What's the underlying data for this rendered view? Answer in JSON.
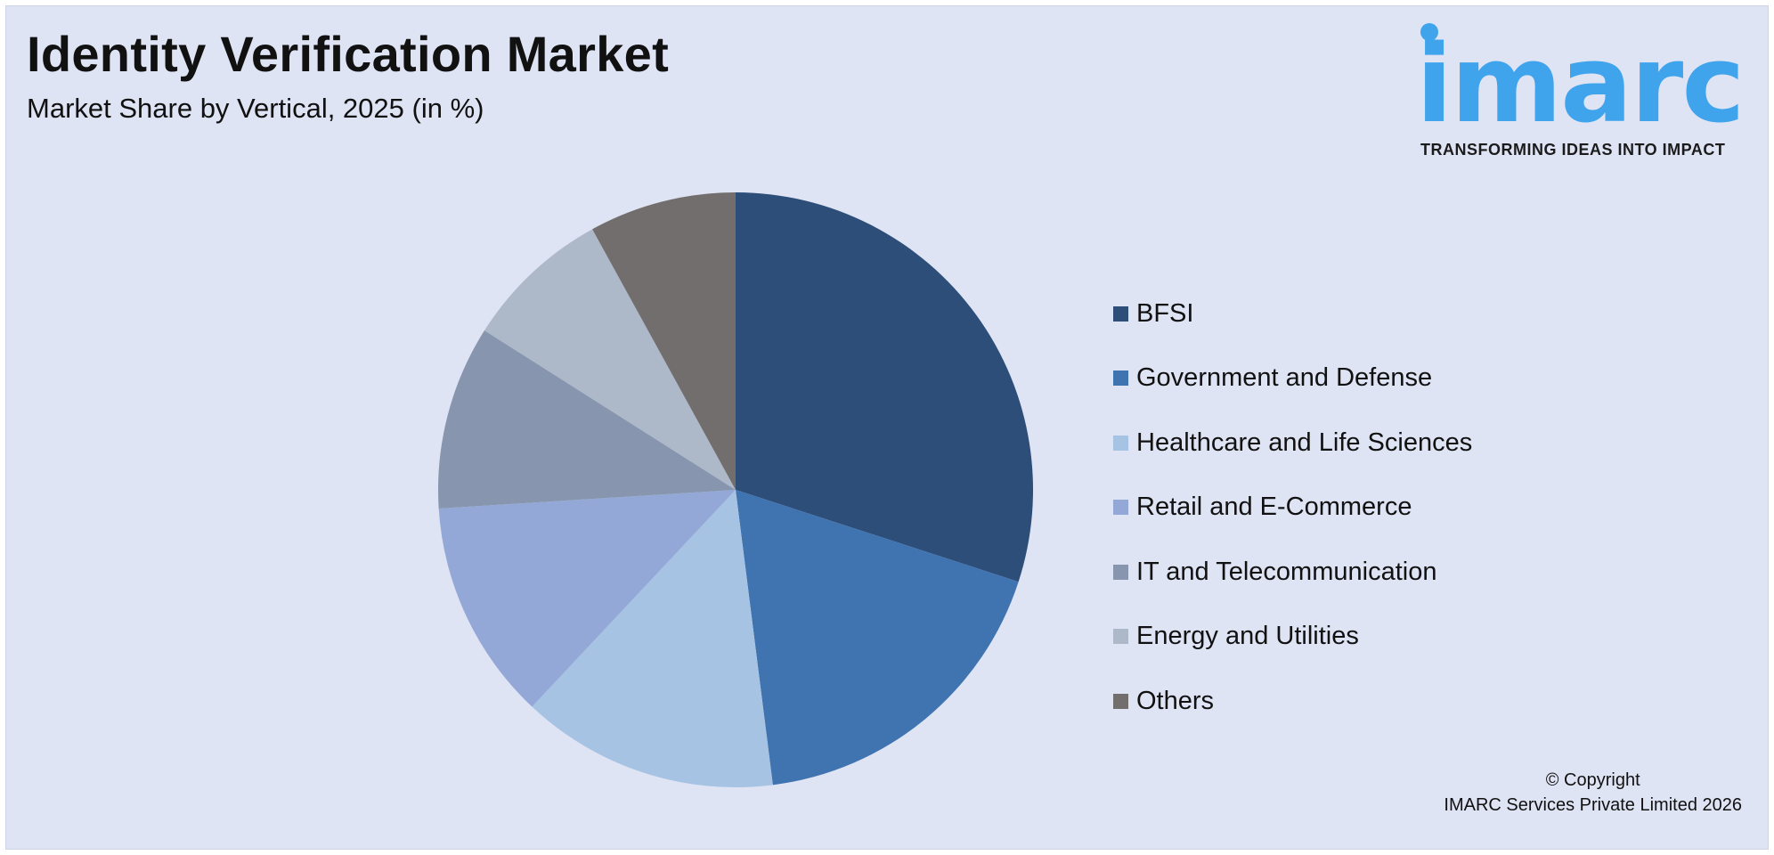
{
  "header": {
    "title": "Identity Verification Market",
    "subtitle": "Market Share by Vertical, 2025 (in %)"
  },
  "logo": {
    "word": "imarc",
    "tagline": "TRANSFORMING IDEAS INTO IMPACT",
    "color": "#3fa4ec"
  },
  "chart_data": {
    "type": "pie",
    "title": "Identity Verification Market",
    "subtitle": "Market Share by Vertical, 2025 (in %)",
    "categories": [
      "BFSI",
      "Government and Defense",
      "Healthcare and Life Sciences",
      "Retail and E-Commerce",
      "IT and Telecommunication",
      "Energy and Utilities",
      "Others"
    ],
    "values": [
      30,
      18,
      14,
      12,
      10,
      8,
      8
    ],
    "colors": [
      "#2c4e78",
      "#3f74b0",
      "#a6c3e3",
      "#93a8d6",
      "#8796ae",
      "#adb8c8",
      "#726e6e"
    ],
    "legend_position": "right",
    "start_angle": "12 o'clock",
    "direction": "clockwise"
  },
  "footer": {
    "copyright_line1": "© Copyright",
    "copyright_line2": "IMARC Services Private Limited 2026"
  }
}
